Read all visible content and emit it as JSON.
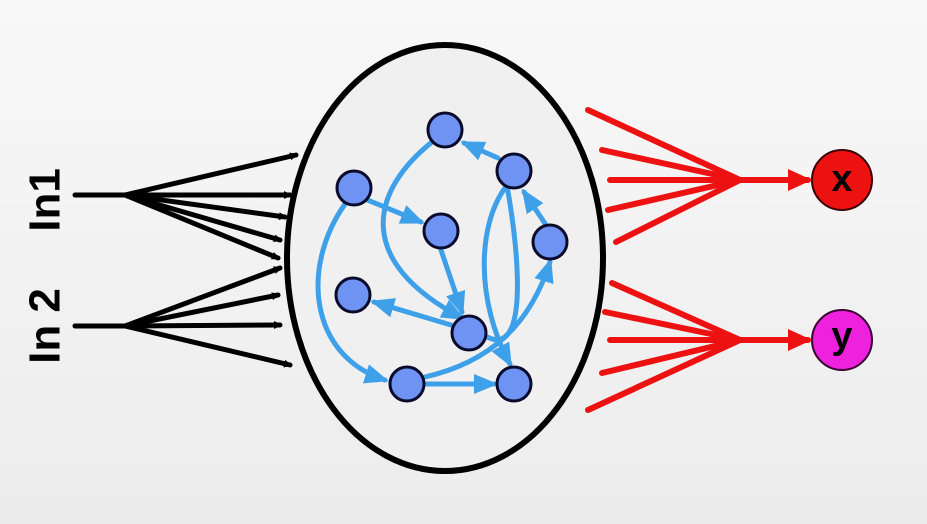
{
  "inputs": {
    "in1": {
      "label": "In1"
    },
    "in2": {
      "label": "In 2"
    }
  },
  "outputs": {
    "x": {
      "label": "x",
      "color": "#ee1111"
    },
    "y": {
      "label": "y",
      "color": "#ee22dd"
    }
  },
  "colors": {
    "input_arrows": "#000000",
    "reservoir_outline": "#000000",
    "reservoir_fill": "#f0f0f0",
    "neuron_fill": "#6f93f2",
    "neuron_stroke": "#0a0a2a",
    "recurrent_arrows": "#3fa0ea",
    "readout_arrows": "#ee1111"
  }
}
